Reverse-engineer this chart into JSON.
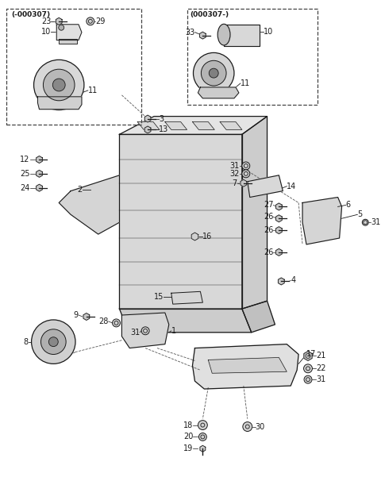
{
  "bg_color": "#ffffff",
  "line_color": "#1a1a1a",
  "box1_label": "(-000307)",
  "box2_label": "(000307-)",
  "figsize": [
    4.8,
    6.01
  ],
  "dpi": 100
}
